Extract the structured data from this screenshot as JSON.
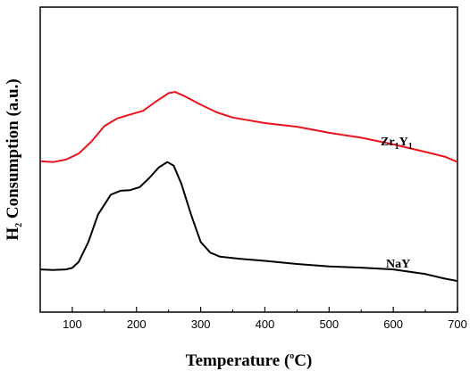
{
  "chart_data": {
    "type": "line",
    "xlabel_main": "Temperature (",
    "xlabel_sup": "o",
    "xlabel_end": "C)",
    "ylabel_main": "H",
    "ylabel_sub": "2",
    "ylabel_end": " Consumption (a.u.)",
    "xlim": [
      50,
      700
    ],
    "xticks": [
      100,
      200,
      300,
      400,
      500,
      600,
      700
    ],
    "ylim": [
      0,
      1
    ],
    "y_ticks_labeled": false,
    "series": [
      {
        "label_parts": [
          "Zr",
          "1",
          "Y",
          "1"
        ],
        "color": "#e8131b",
        "points": [
          [
            50,
            0.495
          ],
          [
            70,
            0.492
          ],
          [
            90,
            0.5
          ],
          [
            110,
            0.52
          ],
          [
            130,
            0.56
          ],
          [
            150,
            0.61
          ],
          [
            170,
            0.635
          ],
          [
            190,
            0.648
          ],
          [
            210,
            0.66
          ],
          [
            230,
            0.69
          ],
          [
            250,
            0.718
          ],
          [
            260,
            0.722
          ],
          [
            275,
            0.708
          ],
          [
            300,
            0.68
          ],
          [
            325,
            0.655
          ],
          [
            350,
            0.638
          ],
          [
            400,
            0.62
          ],
          [
            450,
            0.608
          ],
          [
            500,
            0.588
          ],
          [
            550,
            0.572
          ],
          [
            600,
            0.55
          ],
          [
            650,
            0.525
          ],
          [
            680,
            0.51
          ],
          [
            700,
            0.492
          ]
        ]
      },
      {
        "label": "NaY",
        "color": "#000000",
        "points": [
          [
            50,
            0.14
          ],
          [
            70,
            0.138
          ],
          [
            90,
            0.14
          ],
          [
            100,
            0.145
          ],
          [
            110,
            0.165
          ],
          [
            125,
            0.23
          ],
          [
            140,
            0.32
          ],
          [
            160,
            0.385
          ],
          [
            175,
            0.398
          ],
          [
            190,
            0.4
          ],
          [
            205,
            0.41
          ],
          [
            220,
            0.44
          ],
          [
            235,
            0.475
          ],
          [
            248,
            0.492
          ],
          [
            258,
            0.48
          ],
          [
            270,
            0.42
          ],
          [
            285,
            0.32
          ],
          [
            300,
            0.23
          ],
          [
            315,
            0.195
          ],
          [
            330,
            0.182
          ],
          [
            360,
            0.175
          ],
          [
            400,
            0.168
          ],
          [
            450,
            0.158
          ],
          [
            500,
            0.15
          ],
          [
            550,
            0.146
          ],
          [
            600,
            0.14
          ],
          [
            650,
            0.125
          ],
          [
            680,
            0.11
          ],
          [
            700,
            0.102
          ]
        ]
      }
    ]
  }
}
